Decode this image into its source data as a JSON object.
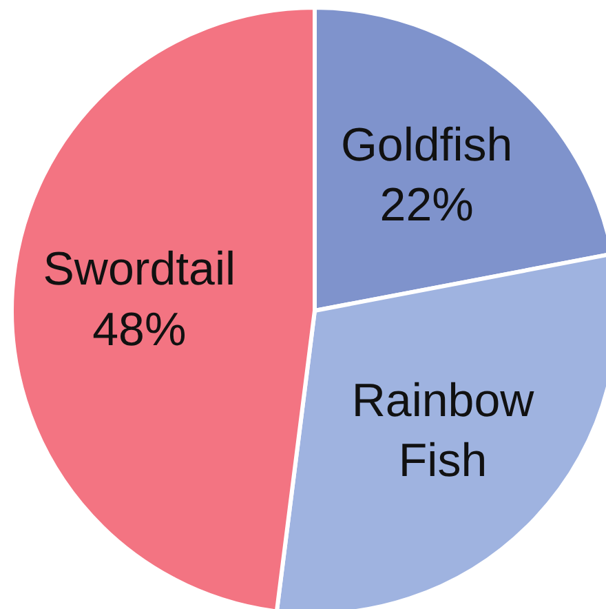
{
  "chart_data": {
    "type": "pie",
    "categories": [
      "Goldfish",
      "Rainbow\nFish",
      "Swordtail"
    ],
    "values": [
      22,
      30,
      48
    ],
    "colors": [
      "#7f93cc",
      "#9fb3e0",
      "#f37482"
    ],
    "value_labels": [
      "22%",
      null,
      "48%"
    ]
  }
}
